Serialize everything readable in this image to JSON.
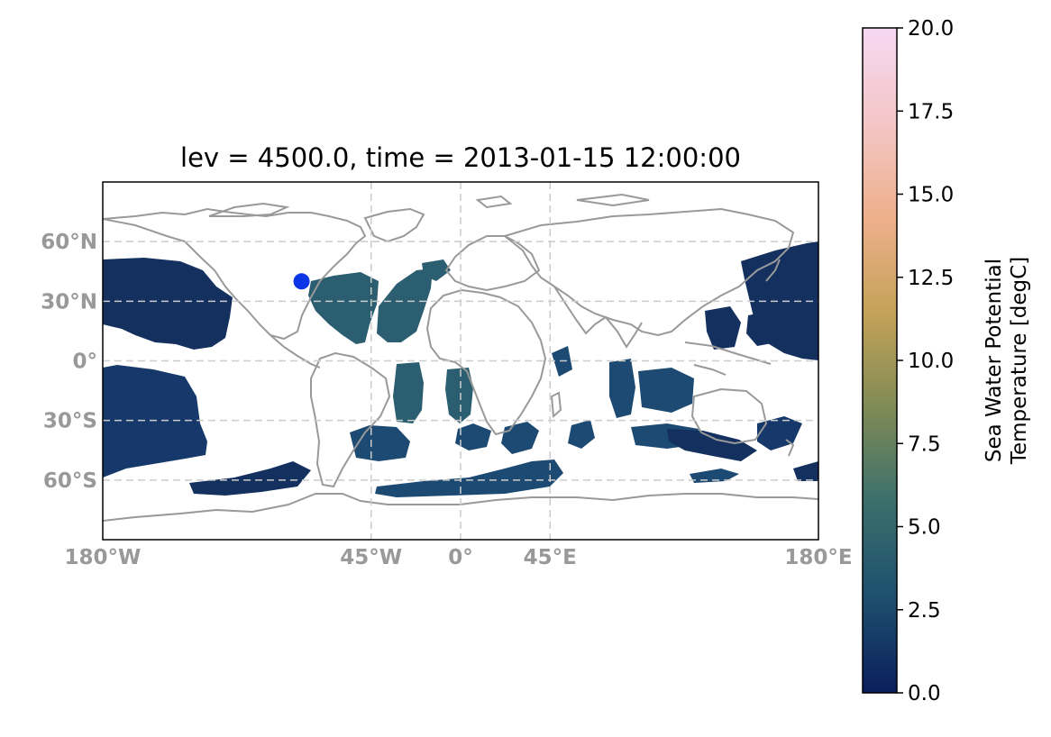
{
  "map": {
    "title": "lev = 4500.0, time = 2013-01-15 12:00:00",
    "projection": "PlateCarree",
    "extent": {
      "lon": [
        -180,
        180
      ],
      "lat": [
        -90,
        90
      ]
    },
    "gridlines": "dashed",
    "coastline_color": "#999999",
    "ocean_fill_colors": [
      "#13305f",
      "#1d4a72",
      "#2a5e70"
    ],
    "lon_ticks": [
      {
        "value": -180,
        "label": "180°W"
      },
      {
        "value": -45,
        "label": "45°W"
      },
      {
        "value": 0,
        "label": "0°"
      },
      {
        "value": 45,
        "label": "45°E"
      },
      {
        "value": 180,
        "label": "180°E"
      }
    ],
    "lat_ticks": [
      {
        "value": 60,
        "label": "60°N"
      },
      {
        "value": 30,
        "label": "30°N"
      },
      {
        "value": 0,
        "label": "0°"
      },
      {
        "value": -30,
        "label": "30°S"
      },
      {
        "value": -60,
        "label": "60°S"
      }
    ],
    "marker": {
      "lon": -80,
      "lat": 40,
      "color": "#0b35e6"
    }
  },
  "colorbar": {
    "label_line1": "Sea Water Potential",
    "label_line2": "Temperature [degC]",
    "range": [
      0,
      20
    ],
    "colormap": "batlow-like",
    "ticks": [
      "0.0",
      "2.5",
      "5.0",
      "7.5",
      "10.0",
      "12.5",
      "15.0",
      "17.5",
      "20.0"
    ],
    "stops": [
      "#0a1f5c",
      "#1e4f6e",
      "#3a6f6c",
      "#7f8b56",
      "#c4a258",
      "#eeb08c",
      "#f4c6c6",
      "#f6d8f3"
    ]
  }
}
